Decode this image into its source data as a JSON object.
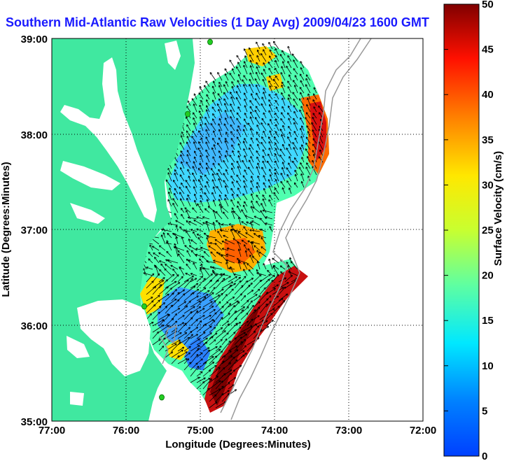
{
  "title": "Southern Mid-Atlantic Raw Velocities (1 Day Avg) 2009/04/23 1600 GMT",
  "x_axis": {
    "label": "Longitude (Degrees:Minutes)",
    "ticks": [
      "77:00",
      "76:00",
      "75:00",
      "74:00",
      "73:00",
      "72:00"
    ]
  },
  "y_axis": {
    "label": "Latitude (Degrees:Minutes)",
    "ticks": [
      "39:00",
      "38:00",
      "37:00",
      "36:00",
      "35:00"
    ]
  },
  "colorbar": {
    "label": "Surface Velocity (cm/s)",
    "ticks": [
      "50",
      "45",
      "40",
      "35",
      "30",
      "25",
      "20",
      "15",
      "10",
      "5",
      "0"
    ],
    "min": 0,
    "max": 50,
    "colormap": "jet"
  },
  "colors": {
    "land": "#40e8a0",
    "title": "#1a1aff",
    "grid": "#000000",
    "bathymetry": "#999999",
    "station": "#22cc22"
  },
  "map_extent": {
    "lon": [
      -77,
      -72
    ],
    "lat": [
      35,
      39
    ]
  },
  "grid": "dotted",
  "symbols": [
    "velocity-vector-arrows",
    "hf-radar-station-markers",
    "bathymetry-contours"
  ]
}
